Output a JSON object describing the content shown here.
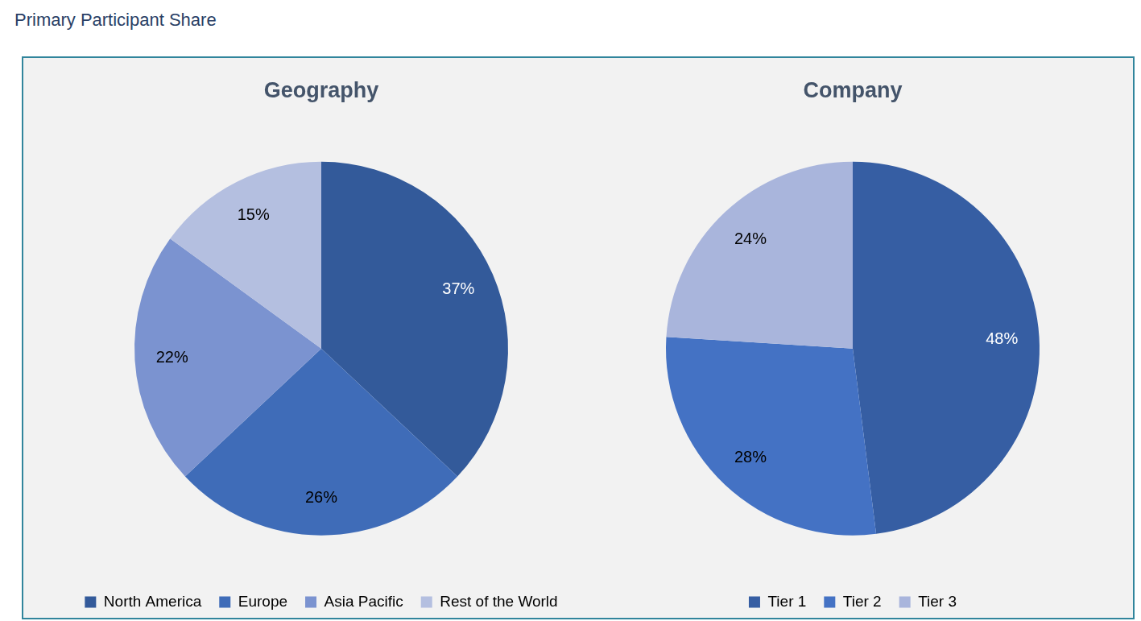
{
  "title": "Primary Participant Share",
  "chart_data": [
    {
      "type": "pie",
      "title": "Geography",
      "categories": [
        "North America",
        "Europe",
        "Asia Pacific",
        "Rest of the World"
      ],
      "values": [
        37,
        26,
        22,
        15
      ],
      "value_labels": [
        "37%",
        "26%",
        "22%",
        "15%"
      ],
      "colors": [
        "#335a9a",
        "#3f6cb8",
        "#7b93d0",
        "#b4bfe0"
      ],
      "data_labels": true,
      "legend": "bottom"
    },
    {
      "type": "pie",
      "title": "Company",
      "categories": [
        "Tier 1",
        "Tier 2",
        "Tier 3"
      ],
      "values": [
        48,
        28,
        24
      ],
      "value_labels": [
        "48%",
        "28%",
        "24%"
      ],
      "colors": [
        "#365ea3",
        "#4472c4",
        "#a9b5dc"
      ],
      "data_labels": true,
      "legend": "bottom"
    }
  ]
}
